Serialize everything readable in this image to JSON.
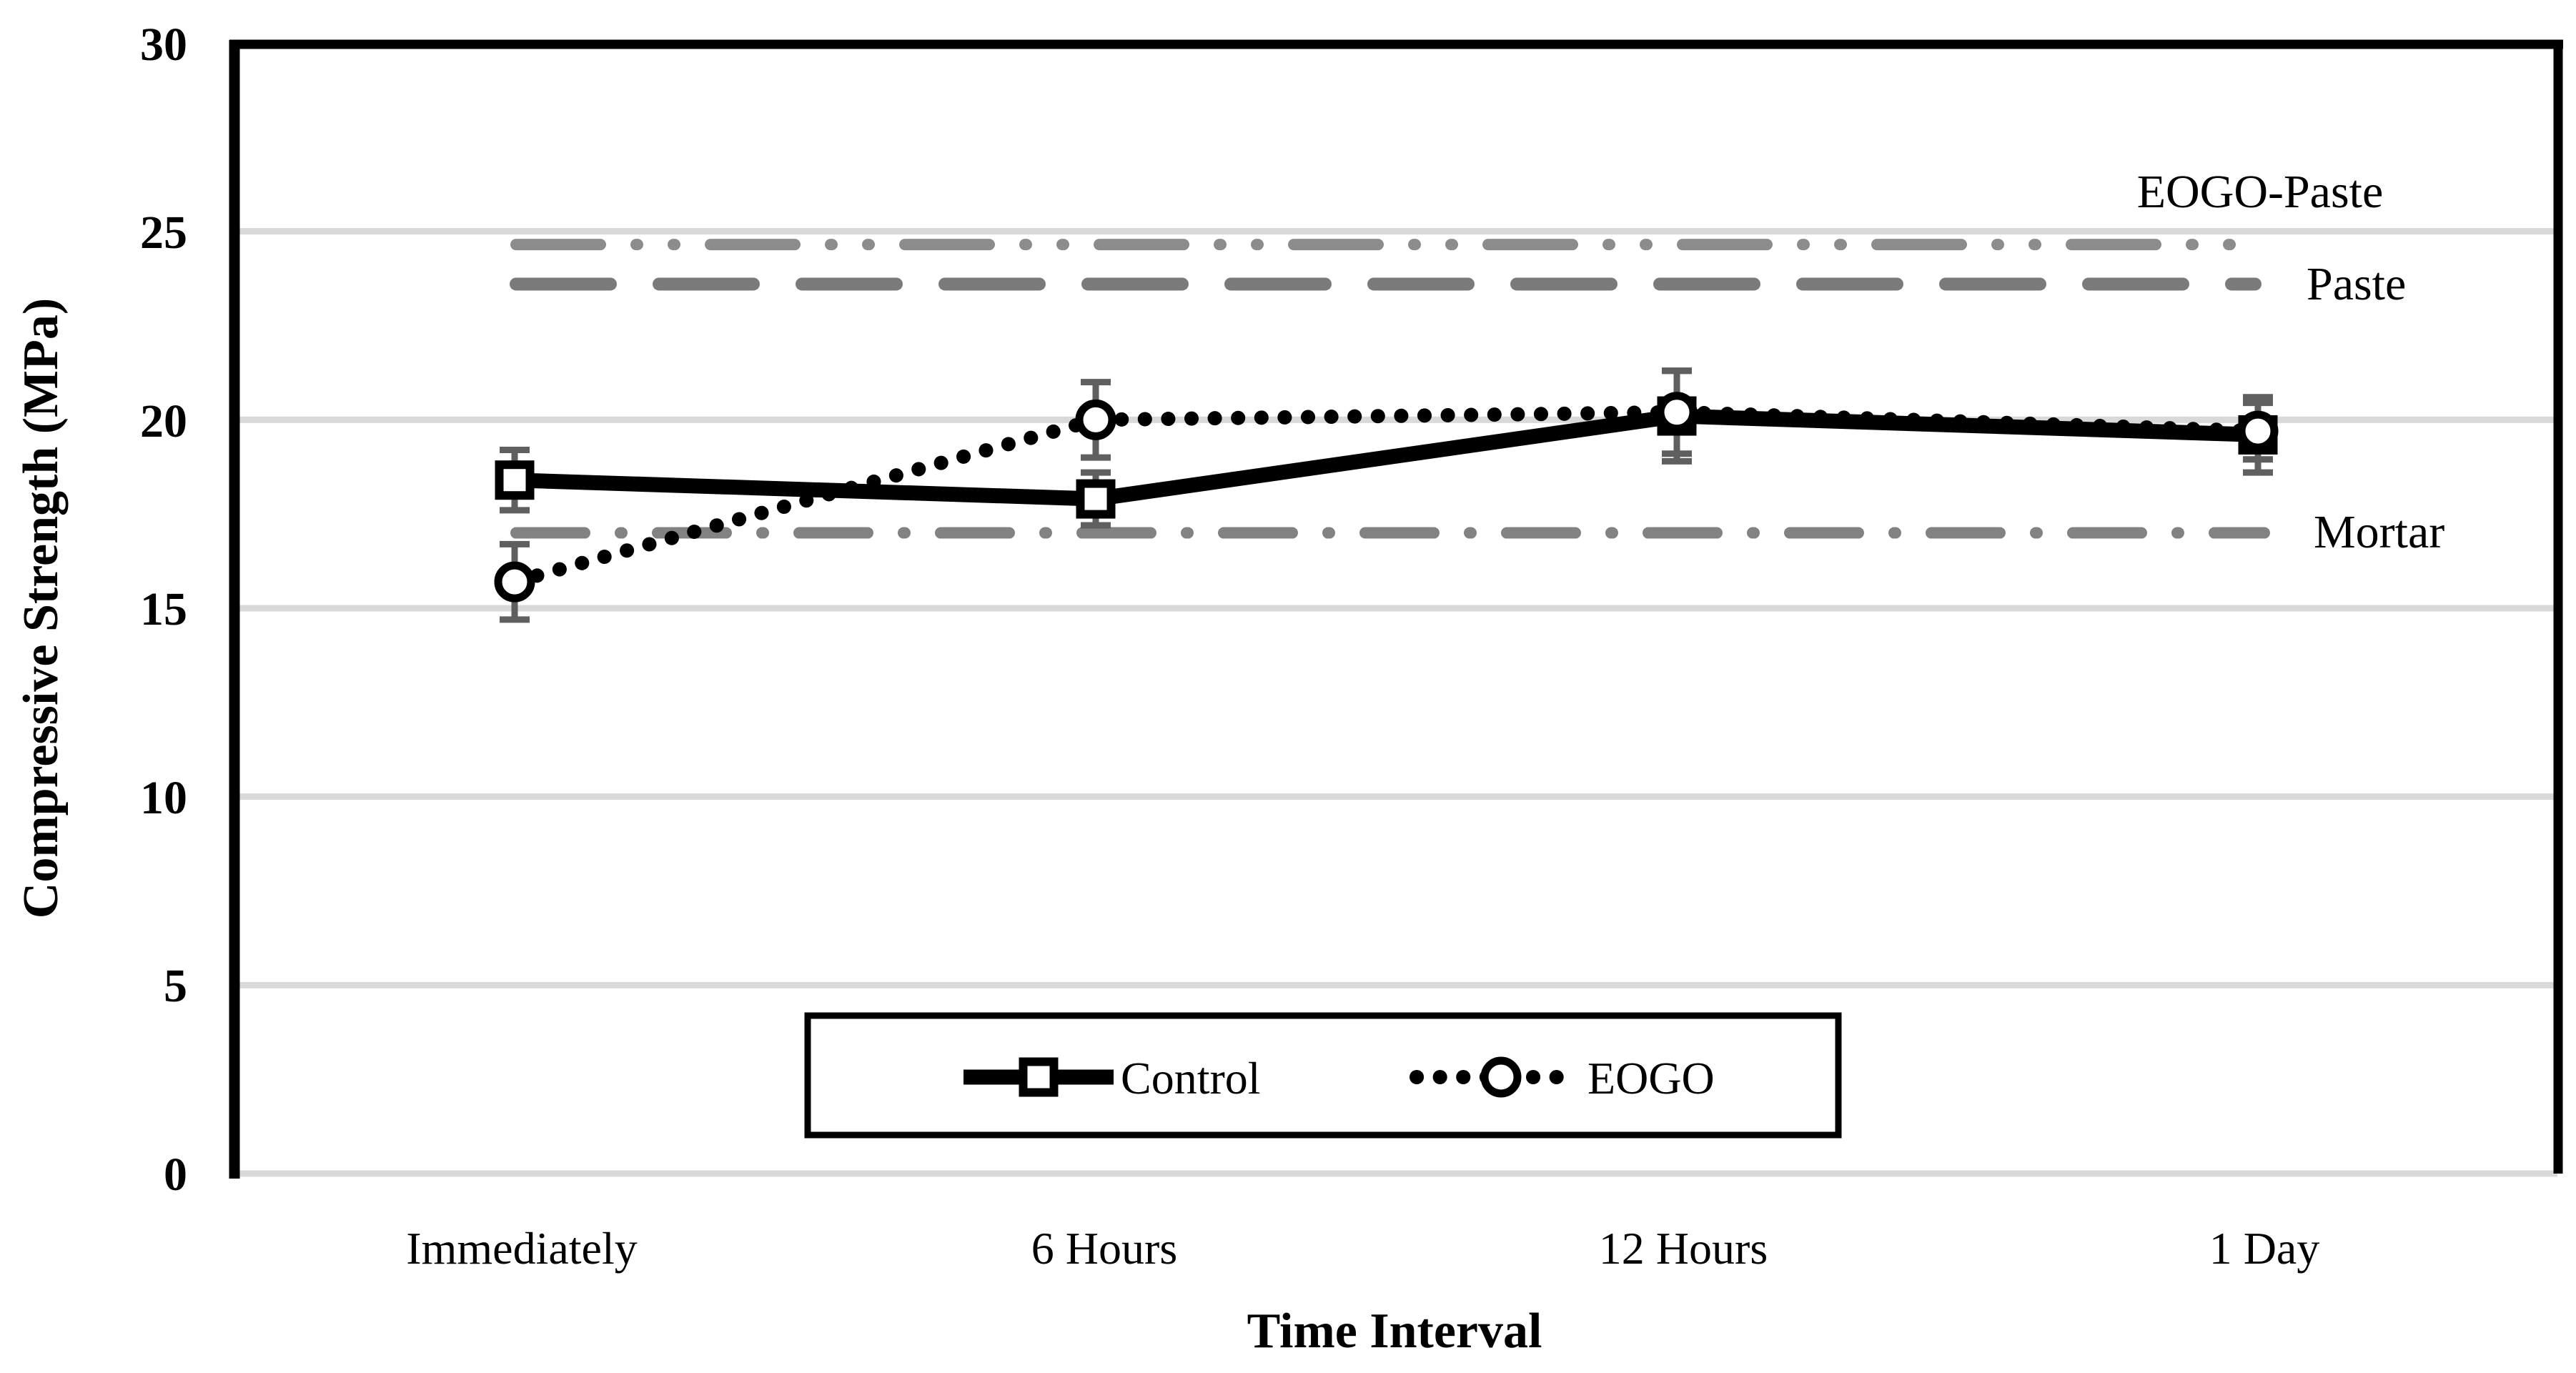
{
  "chart_data": {
    "type": "line",
    "title": "",
    "xlabel": "Time Interval",
    "ylabel": "Compressive Strength (MPa)",
    "ylim": [
      0,
      30
    ],
    "yticks": [
      0,
      5,
      10,
      15,
      20,
      25,
      30
    ],
    "y_tick_labels": [
      "30",
      "25",
      "20",
      "15",
      "10",
      "5",
      "0"
    ],
    "categories": [
      "Immediately",
      "6 Hours",
      "12 Hours",
      "1 Day"
    ],
    "grid": "horizontal-on",
    "gridline_color": "#d9d9d9",
    "axis_color": "#000000",
    "error_bar_color": "#5f5f5f",
    "legend_position": "bottom-center-inside-box",
    "series": [
      {
        "name": "Control",
        "line_style": "solid",
        "marker": "square",
        "color": "#000000",
        "marker_fill": "#ffffff",
        "values": [
          18.4,
          17.9,
          20.1,
          19.6
        ],
        "error": [
          0.8,
          0.7,
          1.2,
          1.0
        ]
      },
      {
        "name": "EOGO",
        "line_style": "dotted",
        "marker": "circle",
        "color": "#000000",
        "marker_fill": "#ffffff",
        "values": [
          15.7,
          20.0,
          20.2,
          19.7
        ],
        "error": [
          1.0,
          1.0,
          1.1,
          0.75
        ]
      }
    ],
    "reference_lines": [
      {
        "name": "EOGO-Paste",
        "value": 24.65,
        "style": "dash-dot-dot",
        "color": "#8c8c8c"
      },
      {
        "name": "Paste",
        "value": 23.6,
        "style": "dashed",
        "color": "#7a7a7a"
      },
      {
        "name": "Mortar",
        "value": 17.0,
        "style": "dash-dot",
        "color": "#828282"
      }
    ]
  },
  "legend": {
    "items": [
      {
        "label": "Control"
      },
      {
        "label": "EOGO"
      }
    ]
  }
}
